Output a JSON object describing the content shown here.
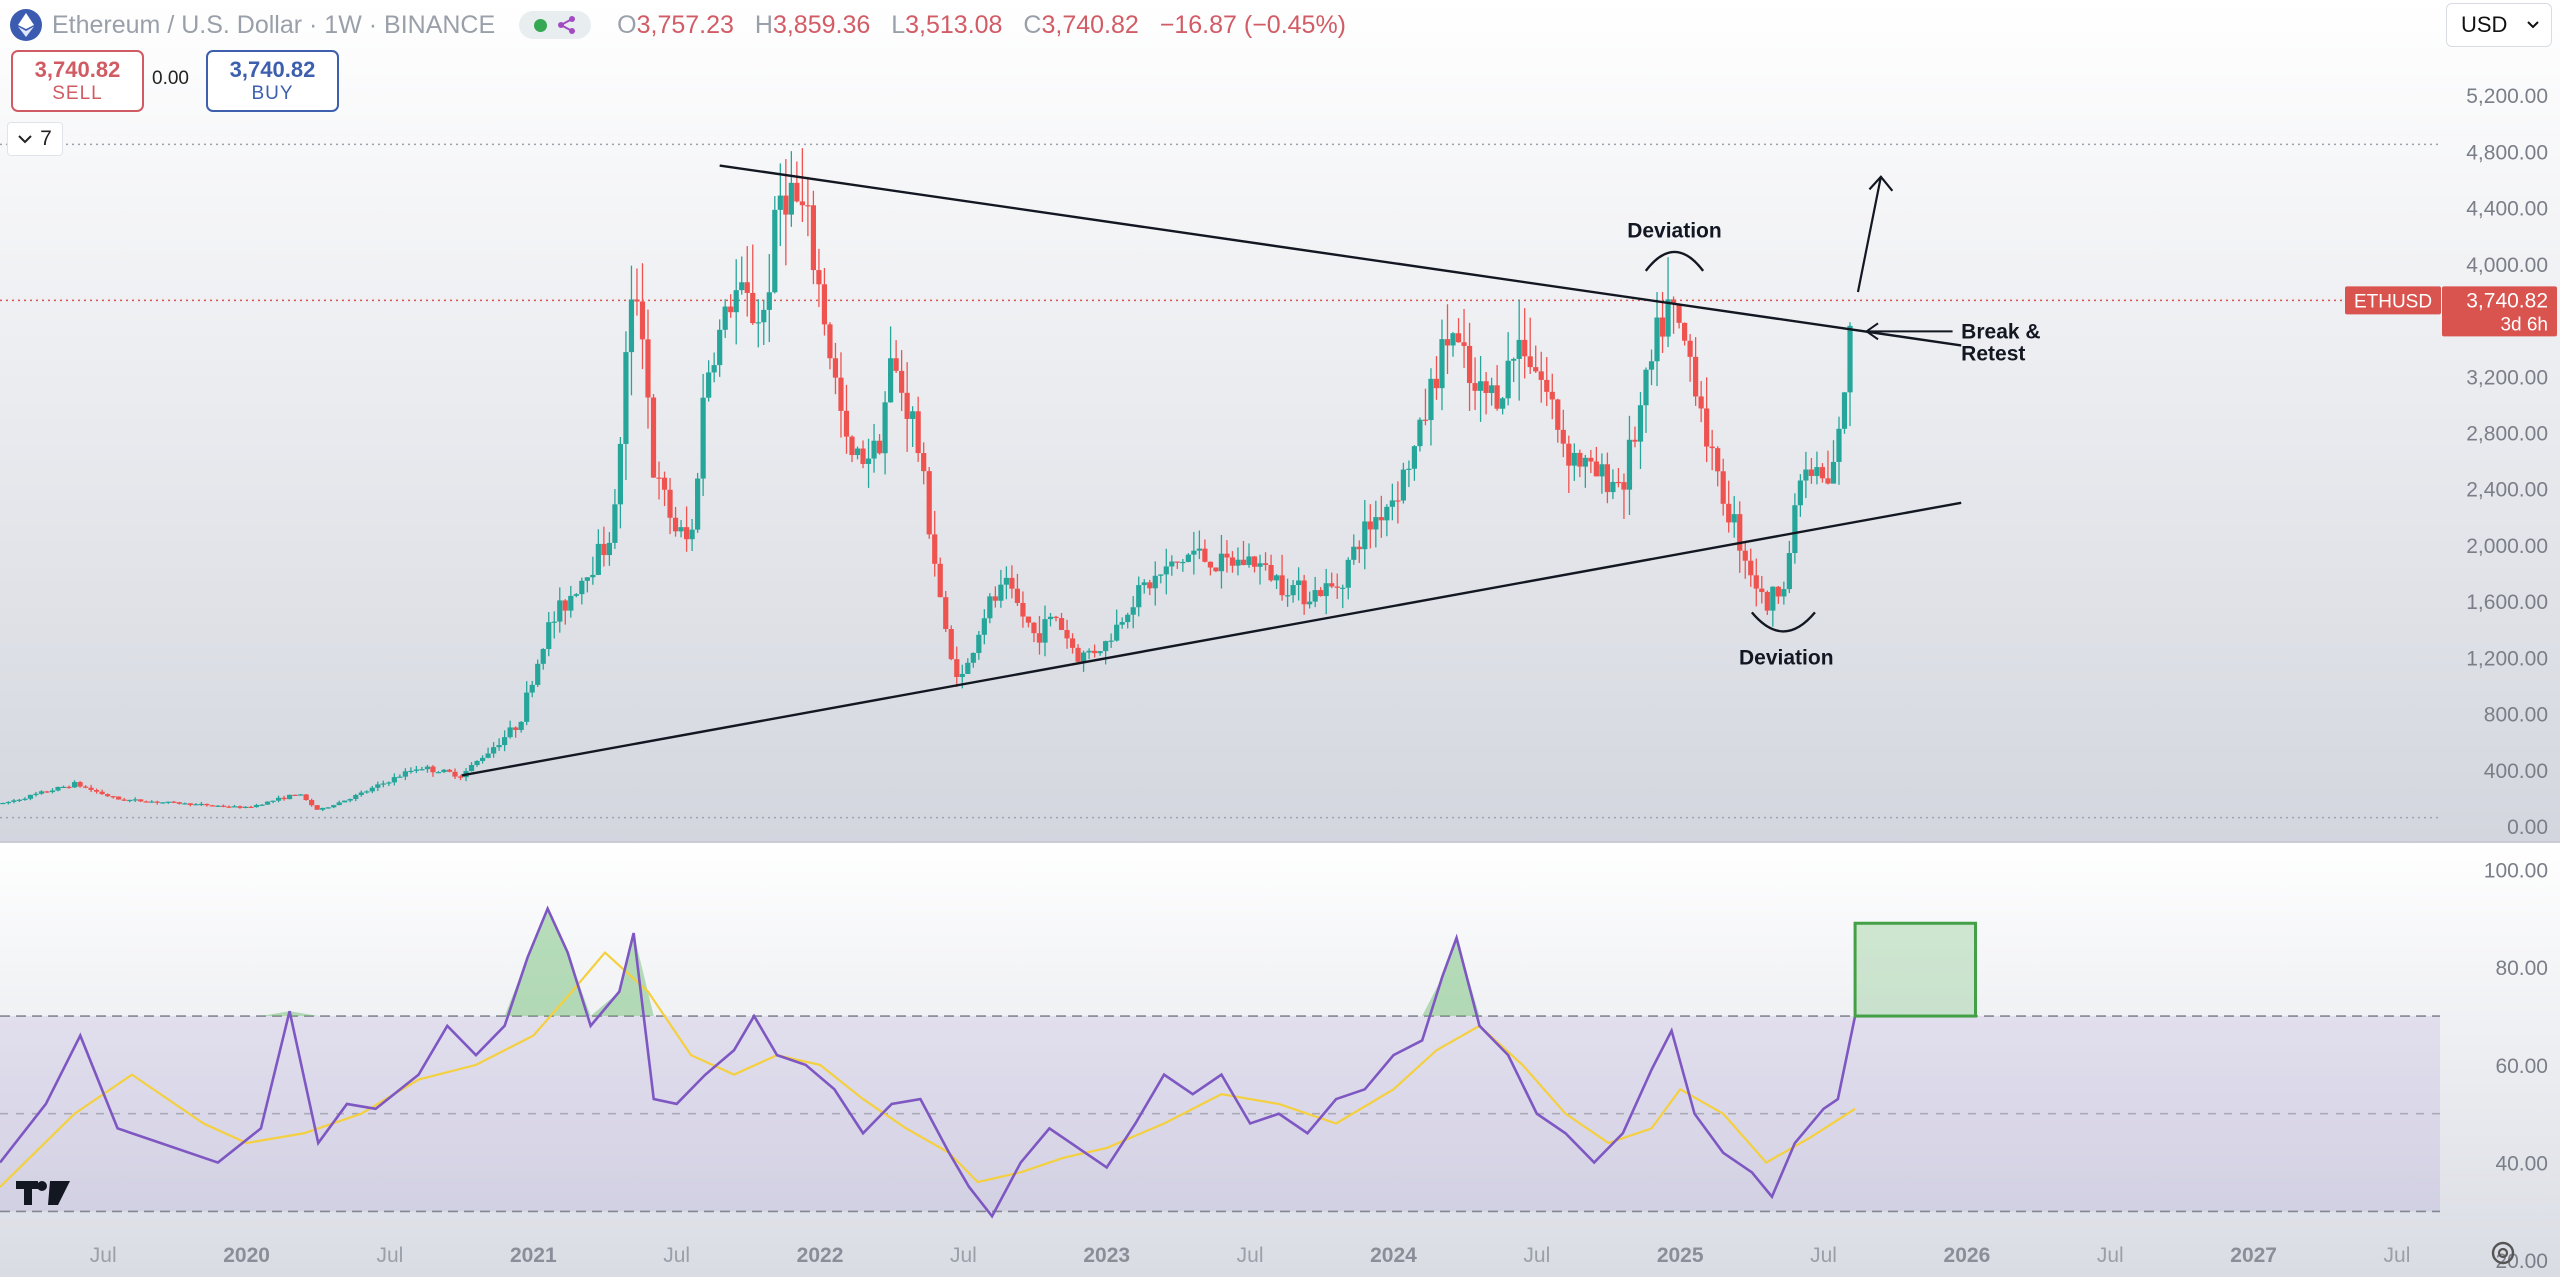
{
  "header": {
    "symbol": "Ethereum / U.S. Dollar · 1W · BINANCE",
    "open_key": "O",
    "open": "3,757.23",
    "high_key": "H",
    "high": "3,859.36",
    "low_key": "L",
    "low": "3,513.08",
    "close_key": "C",
    "close": "3,740.82",
    "change": "−16.87 (−0.45%)"
  },
  "trade": {
    "sell_price": "3,740.82",
    "sell_label": "SELL",
    "spread": "0.00",
    "buy_price": "3,740.82",
    "buy_label": "BUY"
  },
  "indicators_count": "7",
  "currency": "USD",
  "colors": {
    "up": "#26a69a",
    "down": "#ef5350",
    "rsi": "#7e57c2",
    "rsi_ma": "#f4d03f",
    "accent": "#d9534f"
  },
  "chart_data": [
    {
      "type": "candlestick",
      "name": "ETHUSD",
      "interval": "1W",
      "last_price": "3,740.82",
      "countdown": "3d 6h",
      "y_ticks": [
        0,
        400,
        800,
        1200,
        1600,
        2000,
        2400,
        2800,
        3200,
        3600,
        4000,
        4400,
        4800,
        5200
      ],
      "y_tick_labels": [
        "0.00",
        "400.00",
        "800.00",
        "1,200.00",
        "1,600.00",
        "2,000.00",
        "2,400.00",
        "2,800.00",
        "3,200.00",
        "3,600.00",
        "4,000.00",
        "4,400.00",
        "4,800.00",
        "5,200.00"
      ],
      "ylim": [
        0,
        5280
      ],
      "x_ticks": [
        {
          "x": 2019.5,
          "label": "Jul"
        },
        {
          "x": 2020.0,
          "label": "2020"
        },
        {
          "x": 2020.5,
          "label": "Jul"
        },
        {
          "x": 2021.0,
          "label": "2021"
        },
        {
          "x": 2021.5,
          "label": "Jul"
        },
        {
          "x": 2022.0,
          "label": "2022"
        },
        {
          "x": 2022.5,
          "label": "Jul"
        },
        {
          "x": 2023.0,
          "label": "2023"
        },
        {
          "x": 2023.5,
          "label": "Jul"
        },
        {
          "x": 2024.0,
          "label": "2024"
        },
        {
          "x": 2024.5,
          "label": "Jul"
        },
        {
          "x": 2025.0,
          "label": "2025"
        },
        {
          "x": 2025.5,
          "label": "Jul"
        },
        {
          "x": 2026.0,
          "label": "2026"
        },
        {
          "x": 2026.5,
          "label": "Jul"
        },
        {
          "x": 2027.0,
          "label": "2027"
        },
        {
          "x": 2027.5,
          "label": "Jul"
        }
      ],
      "xlim": [
        2019.14,
        2027.65
      ],
      "path": [
        [
          2019.15,
          160
        ],
        [
          2019.4,
          300
        ],
        [
          2019.55,
          190
        ],
        [
          2020.0,
          130
        ],
        [
          2020.18,
          230
        ],
        [
          2020.25,
          110
        ],
        [
          2020.4,
          230
        ],
        [
          2020.6,
          420
        ],
        [
          2020.75,
          360
        ],
        [
          2020.95,
          730
        ],
        [
          2021.05,
          1400
        ],
        [
          2021.18,
          1800
        ],
        [
          2021.28,
          2100
        ],
        [
          2021.33,
          3500
        ],
        [
          2021.37,
          3900
        ],
        [
          2021.42,
          2500
        ],
        [
          2021.5,
          2100
        ],
        [
          2021.55,
          2000
        ],
        [
          2021.6,
          3200
        ],
        [
          2021.7,
          3800
        ],
        [
          2021.8,
          3600
        ],
        [
          2021.87,
          4600
        ],
        [
          2021.95,
          4300
        ],
        [
          2022.0,
          3800
        ],
        [
          2022.1,
          2600
        ],
        [
          2022.2,
          2700
        ],
        [
          2022.25,
          3300
        ],
        [
          2022.33,
          2850
        ],
        [
          2022.4,
          1900
        ],
        [
          2022.45,
          1200
        ],
        [
          2022.5,
          1050
        ],
        [
          2022.58,
          1550
        ],
        [
          2022.65,
          1700
        ],
        [
          2022.75,
          1350
        ],
        [
          2022.82,
          1500
        ],
        [
          2022.9,
          1200
        ],
        [
          2023.0,
          1300
        ],
        [
          2023.1,
          1650
        ],
        [
          2023.2,
          1800
        ],
        [
          2023.3,
          1950
        ],
        [
          2023.4,
          1850
        ],
        [
          2023.5,
          1900
        ],
        [
          2023.6,
          1750
        ],
        [
          2023.7,
          1650
        ],
        [
          2023.8,
          1700
        ],
        [
          2023.9,
          2100
        ],
        [
          2024.0,
          2350
        ],
        [
          2024.08,
          2700
        ],
        [
          2024.13,
          3100
        ],
        [
          2024.2,
          3550
        ],
        [
          2024.28,
          3050
        ],
        [
          2024.37,
          3100
        ],
        [
          2024.45,
          3500
        ],
        [
          2024.55,
          3000
        ],
        [
          2024.6,
          2700
        ],
        [
          2024.7,
          2500
        ],
        [
          2024.8,
          2450
        ],
        [
          2024.88,
          3100
        ],
        [
          2024.95,
          3700
        ],
        [
          2025.0,
          3500
        ],
        [
          2025.05,
          3250
        ],
        [
          2025.12,
          2500
        ],
        [
          2025.18,
          2200
        ],
        [
          2025.25,
          1800
        ],
        [
          2025.3,
          1550
        ],
        [
          2025.37,
          1800
        ],
        [
          2025.42,
          2500
        ],
        [
          2025.48,
          2500
        ],
        [
          2025.52,
          2400
        ],
        [
          2025.55,
          2700
        ],
        [
          2025.58,
          3250
        ],
        [
          2025.61,
          3740
        ]
      ]
    },
    {
      "type": "line",
      "name": "RSI",
      "y_ticks": [
        20,
        40,
        60,
        80,
        100
      ],
      "y_tick_labels": [
        "20.00",
        "40.00",
        "60.00",
        "80.00",
        "100.00"
      ],
      "ylim": [
        18,
        104
      ],
      "bands": {
        "upper": 70,
        "middle": 50,
        "lower": 30
      },
      "series": [
        {
          "role": "rsi",
          "x": [
            2019.14,
            2019.3,
            2019.42,
            2019.55,
            2019.7,
            2019.9,
            2020.05,
            2020.15,
            2020.25,
            2020.35,
            2020.45,
            2020.6,
            2020.7,
            2020.8,
            2020.9,
            2020.98,
            2021.05,
            2021.12,
            2021.2,
            2021.3,
            2021.35,
            2021.42,
            2021.5,
            2021.6,
            2021.7,
            2021.77,
            2021.85,
            2021.95,
            2022.05,
            2022.15,
            2022.25,
            2022.35,
            2022.45,
            2022.52,
            2022.6,
            2022.7,
            2022.8,
            2022.9,
            2023.0,
            2023.1,
            2023.2,
            2023.3,
            2023.4,
            2023.5,
            2023.6,
            2023.7,
            2023.8,
            2023.9,
            2024.0,
            2024.1,
            2024.17,
            2024.22,
            2024.3,
            2024.4,
            2024.5,
            2024.6,
            2024.7,
            2024.8,
            2024.9,
            2024.97,
            2025.05,
            2025.15,
            2025.25,
            2025.32,
            2025.4,
            2025.5,
            2025.55,
            2025.61
          ],
          "values": [
            40,
            52,
            66,
            47,
            44,
            40,
            47,
            71,
            44,
            52,
            51,
            58,
            68,
            62,
            68,
            82,
            92,
            83,
            68,
            75,
            87,
            53,
            52,
            58,
            63,
            70,
            62,
            60,
            55,
            46,
            52,
            53,
            42,
            35,
            29,
            40,
            47,
            43,
            39,
            48,
            58,
            54,
            58,
            48,
            50,
            46,
            53,
            55,
            62,
            65,
            78,
            86,
            68,
            62,
            50,
            46,
            40,
            46,
            59,
            67,
            50,
            42,
            38,
            33,
            44,
            51,
            53,
            70
          ]
        },
        {
          "role": "rsi_ma",
          "x": [
            2019.14,
            2019.4,
            2019.6,
            2019.85,
            2020.0,
            2020.2,
            2020.4,
            2020.6,
            2020.8,
            2021.0,
            2021.12,
            2021.25,
            2021.4,
            2021.55,
            2021.7,
            2021.85,
            2022.0,
            2022.15,
            2022.3,
            2022.45,
            2022.55,
            2022.7,
            2022.85,
            2023.0,
            2023.2,
            2023.4,
            2023.6,
            2023.8,
            2024.0,
            2024.15,
            2024.3,
            2024.45,
            2024.6,
            2024.75,
            2024.9,
            2025.0,
            2025.15,
            2025.3,
            2025.45,
            2025.61
          ],
          "values": [
            35,
            50,
            58,
            48,
            44,
            46,
            50,
            57,
            60,
            66,
            74,
            83,
            75,
            62,
            58,
            62,
            60,
            53,
            47,
            42,
            36,
            38,
            41,
            43,
            48,
            54,
            52,
            48,
            55,
            63,
            68,
            60,
            50,
            44,
            47,
            55,
            50,
            40,
            45,
            51
          ]
        }
      ]
    }
  ],
  "annotations": {
    "deviation_top": "Deviation",
    "deviation_bottom": "Deviation",
    "break_line1": "Break &",
    "break_line2": "Retest"
  }
}
